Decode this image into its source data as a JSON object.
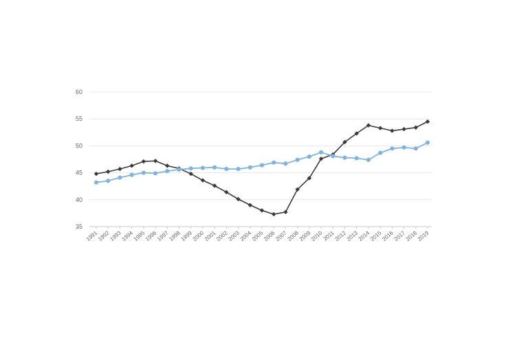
{
  "chart_data": {
    "type": "line",
    "title": "",
    "xlabel": "",
    "ylabel": "",
    "ylim": [
      35,
      60
    ],
    "yticks": [
      35,
      40,
      45,
      50,
      55,
      60
    ],
    "grid": true,
    "legend": "none",
    "categories": [
      "1991",
      "1992",
      "1993",
      "1994",
      "1995",
      "1996",
      "1997",
      "1998",
      "1999",
      "2000",
      "2001",
      "2002",
      "2003",
      "2004",
      "2005",
      "2006",
      "2007",
      "2008",
      "2009",
      "2010",
      "2011",
      "2012",
      "2013",
      "2014",
      "2015",
      "2016",
      "2017",
      "2018",
      "2019"
    ],
    "series": [
      {
        "color": "#3a3a3a",
        "marker": "diamond",
        "values": [
          44.8,
          45.2,
          45.7,
          46.3,
          47.1,
          47.2,
          46.3,
          45.8,
          44.8,
          43.6,
          42.6,
          41.4,
          40.1,
          39.0,
          38.0,
          37.3,
          37.7,
          41.9,
          44.0,
          47.6,
          48.4,
          50.7,
          52.3,
          53.8,
          53.3,
          52.8,
          53.1,
          53.4,
          54.5
        ]
      },
      {
        "color": "#7fb3e0",
        "marker": "circle",
        "values": [
          43.2,
          43.5,
          44.1,
          44.6,
          45.0,
          44.9,
          45.3,
          45.6,
          45.8,
          45.9,
          46.0,
          45.7,
          45.7,
          46.0,
          46.4,
          46.9,
          46.7,
          47.4,
          48.0,
          48.8,
          48.1,
          47.8,
          47.7,
          47.4,
          48.7,
          49.5,
          49.7,
          49.5,
          50.6
        ]
      }
    ]
  }
}
